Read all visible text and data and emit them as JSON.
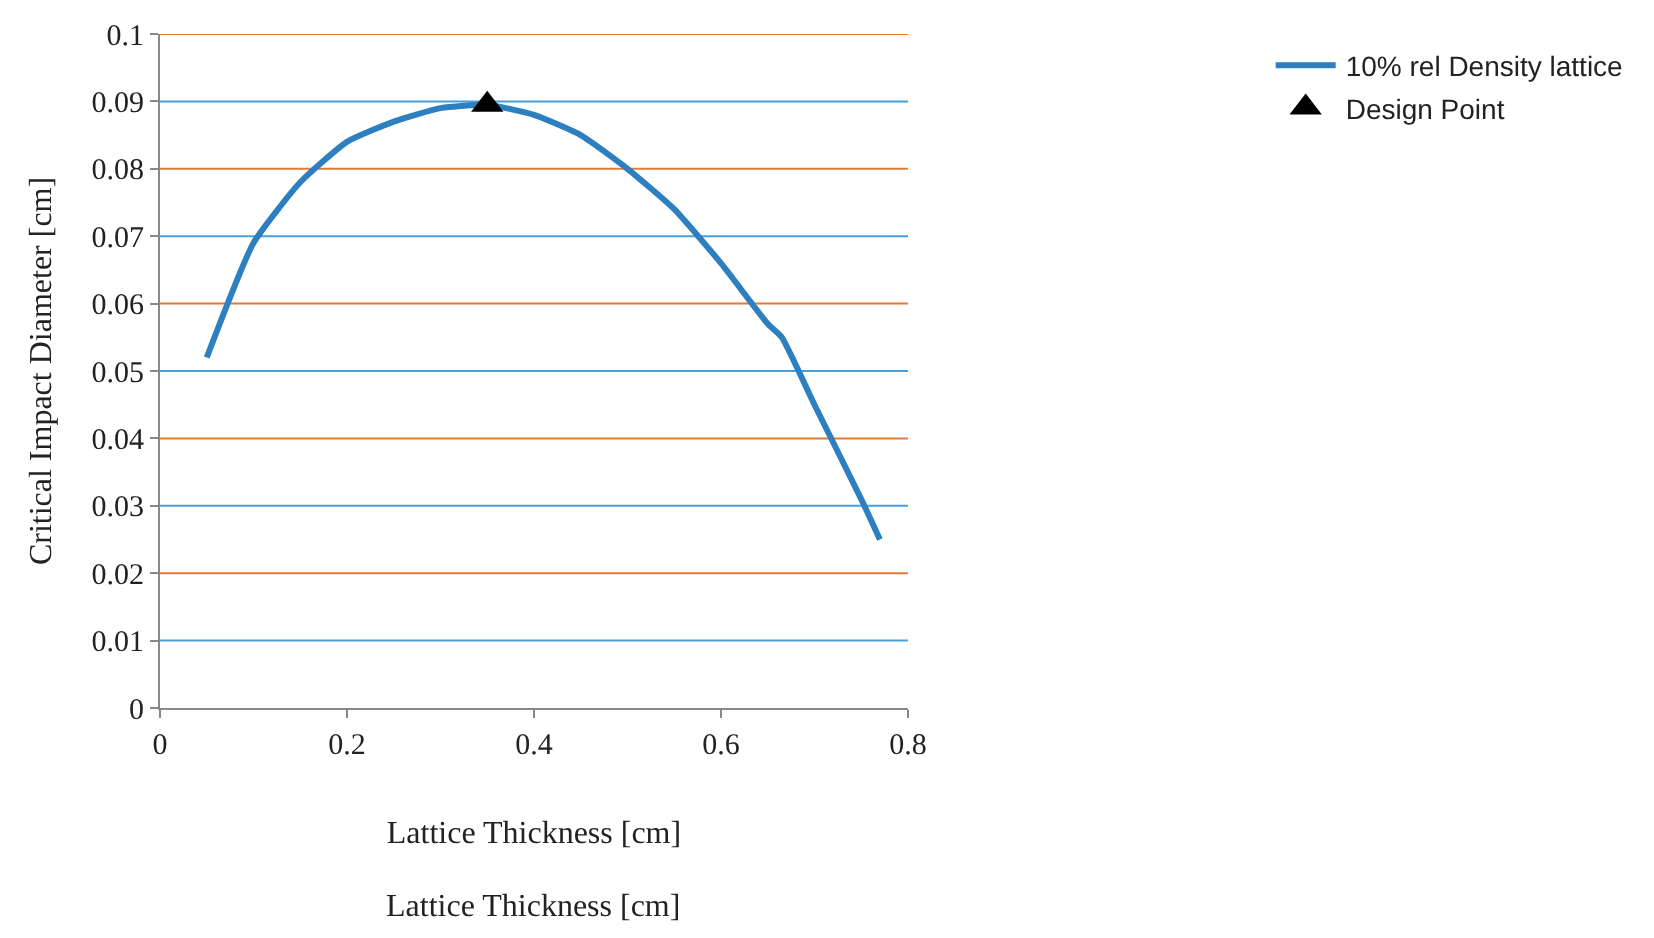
{
  "chart_data": {
    "type": "line",
    "xlabel": "Lattice Thickness [cm]",
    "ylabel": "Critical Impact Diameter [cm]",
    "annotations": [
      "Lattice Thickness [cm]"
    ],
    "xlim": [
      0,
      0.8
    ],
    "xticks": [
      0,
      0.2,
      0.4,
      0.6,
      0.8
    ],
    "ylim": [
      0,
      0.1
    ],
    "yticks": [
      0,
      0.01,
      0.02,
      0.03,
      0.04,
      0.05,
      0.06,
      0.07,
      0.08,
      0.09,
      0.1
    ],
    "grid": "y",
    "legend": "top right",
    "series": [
      {
        "name": "10% rel Density lattice",
        "color": "#2e7fc0",
        "marker": "none",
        "line_style": "solid",
        "x": [
          0.05,
          0.1,
          0.15,
          0.2,
          0.25,
          0.3,
          0.35,
          0.4,
          0.45,
          0.5,
          0.55,
          0.6,
          0.65,
          0.665,
          0.7,
          0.75,
          0.77
        ],
        "values": [
          0.052,
          0.069,
          0.078,
          0.084,
          0.087,
          0.089,
          0.0895,
          0.088,
          0.085,
          0.08,
          0.074,
          0.066,
          0.057,
          0.055,
          0.045,
          0.031,
          0.025
        ]
      },
      {
        "name": "Design Point",
        "type": "scatter",
        "color": "#000000",
        "marker": "triangle",
        "x": [
          0.35
        ],
        "values": [
          0.0895
        ]
      }
    ]
  }
}
